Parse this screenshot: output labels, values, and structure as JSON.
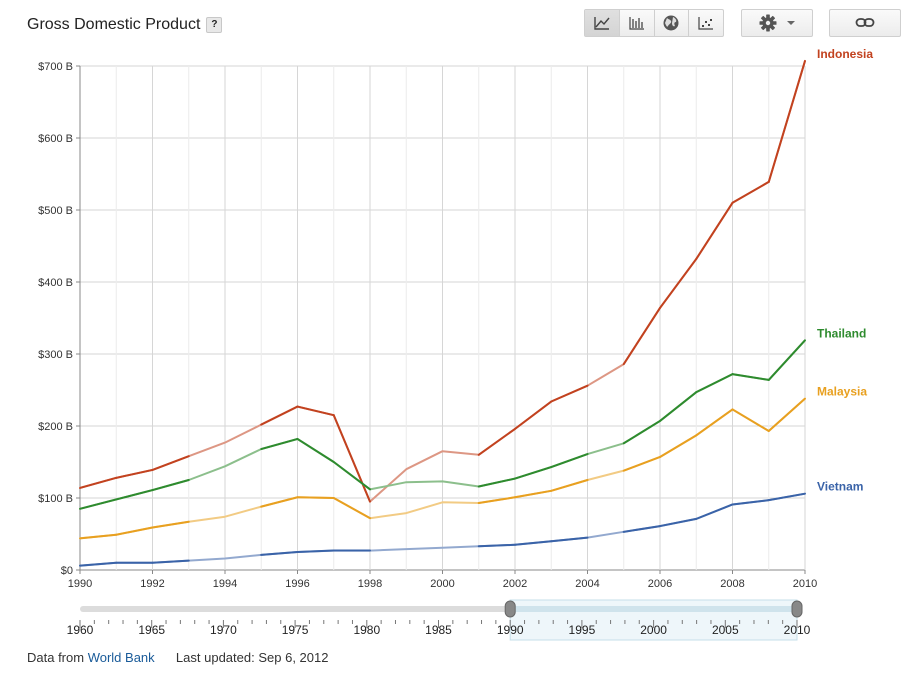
{
  "header": {
    "title": "Gross Domestic Product",
    "help_label": "?",
    "toolbar": {
      "icons": [
        "line-chart-icon",
        "bar-chart-icon",
        "globe-map-icon",
        "scatter-chart-icon"
      ],
      "active": "line-chart-icon",
      "settings_icon": "gear-icon",
      "dropdown_icon": "caret-down-icon",
      "link_icon": "link-icon"
    }
  },
  "chart_data": {
    "type": "line",
    "title": "",
    "xlabel": "",
    "ylabel": "",
    "x": [
      1990,
      1991,
      1992,
      1993,
      1994,
      1995,
      1996,
      1997,
      1998,
      1999,
      2000,
      2001,
      2002,
      2003,
      2004,
      2005,
      2006,
      2007,
      2008,
      2009,
      2010
    ],
    "xlim": [
      1990,
      2010
    ],
    "ylim": [
      0,
      700
    ],
    "x_ticks": [
      "1990",
      "1992",
      "1994",
      "1996",
      "1998",
      "2000",
      "2002",
      "2004",
      "2006",
      "2008",
      "2010"
    ],
    "y_ticks": [
      "$0",
      "$100 B",
      "$200 B",
      "$300 B",
      "$400 B",
      "$500 B",
      "$600 B",
      "$700 B"
    ],
    "grid": true,
    "legend": "right-end labels",
    "series": [
      {
        "name": "Indonesia",
        "color": "#c2421f",
        "values": [
          114,
          128,
          139,
          158,
          177,
          202,
          227,
          215,
          95,
          140,
          165,
          160,
          196,
          234,
          256,
          286,
          364,
          432,
          510,
          539,
          707
        ]
      },
      {
        "name": "Thailand",
        "color": "#2e8b2e",
        "values": [
          85,
          98,
          111,
          125,
          144,
          168,
          182,
          150,
          112,
          122,
          123,
          116,
          127,
          143,
          161,
          176,
          207,
          247,
          272,
          264,
          319
        ]
      },
      {
        "name": "Malaysia",
        "color": "#e8a020",
        "values": [
          44,
          49,
          59,
          67,
          74,
          88,
          101,
          100,
          72,
          79,
          94,
          93,
          101,
          110,
          125,
          138,
          157,
          187,
          223,
          193,
          238
        ]
      },
      {
        "name": "Vietnam",
        "color": "#3a63a8",
        "values": [
          6,
          10,
          10,
          13,
          16,
          21,
          25,
          27,
          27,
          29,
          31,
          33,
          35,
          40,
          45,
          53,
          61,
          71,
          91,
          97,
          106
        ]
      }
    ],
    "highlight_years": [
      1991,
      1992,
      1993,
      1996,
      1997,
      1998,
      2002,
      2003,
      2004,
      2006,
      2007,
      2008,
      2009,
      2010
    ]
  },
  "timeline": {
    "ticks": [
      "1960",
      "1965",
      "1970",
      "1975",
      "1980",
      "1985",
      "1990",
      "1995",
      "2000",
      "2005",
      "2010"
    ],
    "range": [
      1960,
      2010
    ],
    "selected": [
      1990,
      2010
    ]
  },
  "footer": {
    "prefix": "Data from",
    "source": "World Bank",
    "updated_label": "Last updated:",
    "updated_date": "Sep 6, 2012"
  }
}
